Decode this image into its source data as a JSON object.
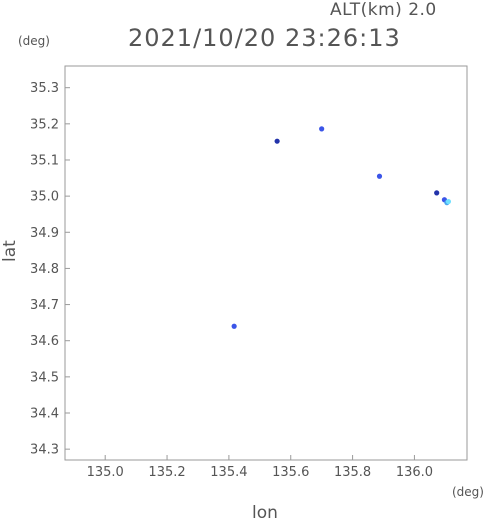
{
  "header": {
    "altitude_label": "ALT(km)  2.0",
    "datetime": "2021/10/20 23:26:13",
    "y_unit": "(deg)",
    "x_unit": "(deg)"
  },
  "chart_data": {
    "type": "scatter",
    "title": "2021/10/20 23:26:13",
    "xlabel": "lon",
    "ylabel": "lat",
    "xlim": [
      134.87,
      136.17
    ],
    "ylim": [
      34.27,
      35.36
    ],
    "xticks": [
      "135.0",
      "135.2",
      "135.4",
      "135.6",
      "135.8",
      "136.0"
    ],
    "xtick_values": [
      135.0,
      135.2,
      135.4,
      135.6,
      135.8,
      136.0
    ],
    "yticks": [
      "35.3",
      "35.2",
      "35.1",
      "35.0",
      "34.9",
      "34.8",
      "34.7",
      "34.6",
      "34.5",
      "34.4",
      "34.3"
    ],
    "ytick_values": [
      35.3,
      35.2,
      35.1,
      35.0,
      34.9,
      34.8,
      34.7,
      34.6,
      34.5,
      34.4,
      34.3
    ],
    "grid": false,
    "series": [
      {
        "points": [
          {
            "x": 135.7,
            "y": 35.186,
            "color": "#3b55e8"
          },
          {
            "x": 135.556,
            "y": 35.152,
            "color": "#2233aa"
          },
          {
            "x": 135.887,
            "y": 35.055,
            "color": "#3b55e8"
          },
          {
            "x": 136.072,
            "y": 35.009,
            "color": "#2233aa"
          },
          {
            "x": 136.097,
            "y": 34.99,
            "color": "#3b55e8"
          },
          {
            "x": 136.105,
            "y": 34.982,
            "color": "#4aa8f0"
          },
          {
            "x": 136.11,
            "y": 34.985,
            "color": "#6fe0ff"
          },
          {
            "x": 135.417,
            "y": 34.64,
            "color": "#3b55e8"
          }
        ]
      }
    ]
  }
}
